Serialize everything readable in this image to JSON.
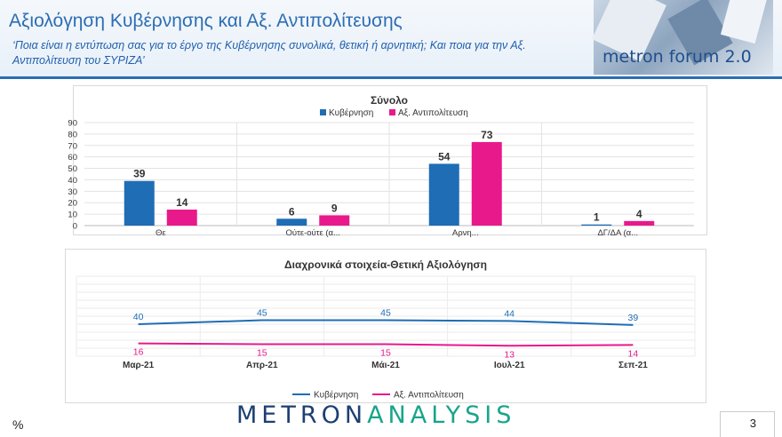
{
  "header": {
    "title": "Αξιολόγηση Κυβέρνησης και Αξ. Αντιπολίτευσης",
    "subtitle": "‘Ποια είναι η εντύπωση σας για το έργο της Κυβέρνησης συνολικά, θετική ή αρνητική; Και ποια για την Αξ. Αντιπολίτευση του ΣΥΡΙΖΑ’",
    "brand": "metron forum 2.0"
  },
  "footer": {
    "percent_label": "%",
    "logo_part1": "METRON",
    "logo_part2": "ANALYSIS",
    "page_number": "3"
  },
  "colors": {
    "blue": "#1f6db5",
    "magenta": "#e8198b",
    "title": "#2d6db3"
  },
  "chart_data": [
    {
      "type": "bar",
      "title": "Σύνολο",
      "categories": [
        "Θε",
        "Ούτε-ούτε (α...",
        "Αρνη...",
        "ΔΓ/ΔΑ (α..."
      ],
      "series": [
        {
          "name": "Κυβέρνηση",
          "values": [
            39,
            6,
            54,
            1
          ]
        },
        {
          "name": "Αξ. Αντιπολίτευση",
          "values": [
            14,
            9,
            73,
            4
          ]
        }
      ],
      "ylim": [
        0,
        90
      ],
      "yticks": [
        "0",
        "10",
        "20",
        "30",
        "40",
        "50",
        "60",
        "70",
        "80",
        "90"
      ],
      "legend": "top",
      "grid": true
    },
    {
      "type": "line",
      "title": "Διαχρονικά στοιχεία-Θετική Αξιολόγηση",
      "categories": [
        "Μαρ-21",
        "Απρ-21",
        "Μάι-21",
        "Ιουλ-21",
        "Σεπ-21"
      ],
      "series": [
        {
          "name": "Κυβέρνηση",
          "values": [
            40,
            45,
            45,
            44,
            39
          ]
        },
        {
          "name": "Αξ. Αντιπολίτευση",
          "values": [
            16,
            15,
            15,
            13,
            14
          ]
        }
      ],
      "ylim": [
        0,
        100
      ],
      "legend": "bottom",
      "grid": true
    }
  ]
}
